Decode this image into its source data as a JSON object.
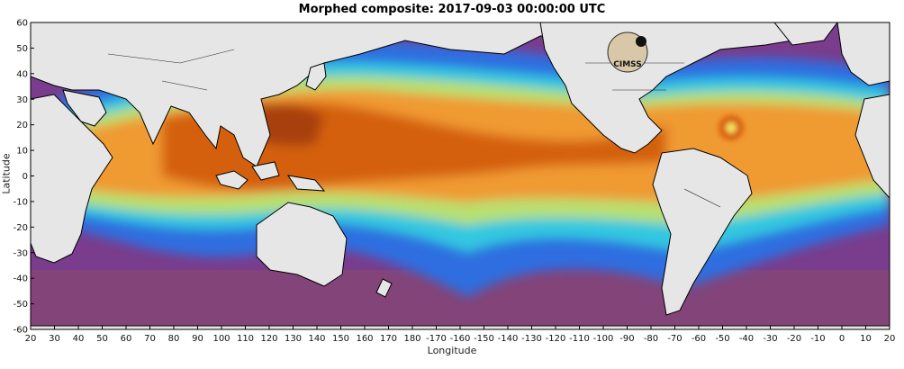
{
  "figure": {
    "title": "Morphed composite: 2017-09-03 00:00:00 UTC",
    "xlabel": "Longitude",
    "ylabel": "Latitude",
    "logo_text": "CIMSS"
  },
  "chart_data": {
    "type": "heatmap",
    "title": "Morphed composite: 2017-09-03 00:00:00 UTC",
    "xlabel": "Longitude",
    "ylabel": "Latitude",
    "x_ticks": [
      "20",
      "30",
      "40",
      "50",
      "60",
      "70",
      "80",
      "90",
      "100",
      "110",
      "120",
      "130",
      "140",
      "150",
      "160",
      "170",
      "180",
      "-170",
      "-160",
      "-150",
      "-140",
      "-130",
      "-120",
      "-110",
      "-100",
      "-90",
      "-80",
      "-70",
      "-60",
      "-50",
      "-40",
      "-30",
      "-20",
      "-10",
      "0",
      "10",
      "20"
    ],
    "y_ticks": [
      "60",
      "50",
      "40",
      "30",
      "20",
      "10",
      "0",
      "-10",
      "-20",
      "-30",
      "-40",
      "-50",
      "-60"
    ],
    "xlim": [
      20,
      380
    ],
    "ylim": [
      -60,
      60
    ],
    "colormap": [
      "#7a3c8c",
      "#6a3aa8",
      "#3a5ad8",
      "#1ea8f0",
      "#40e0d0",
      "#e6e060",
      "#f0a030",
      "#d86010",
      "#a03c08"
    ],
    "land_color": "#e6e6e6",
    "features": [
      {
        "name": "tropical cyclone (Atlantic)",
        "lon": 305,
        "lat": 18
      }
    ]
  }
}
